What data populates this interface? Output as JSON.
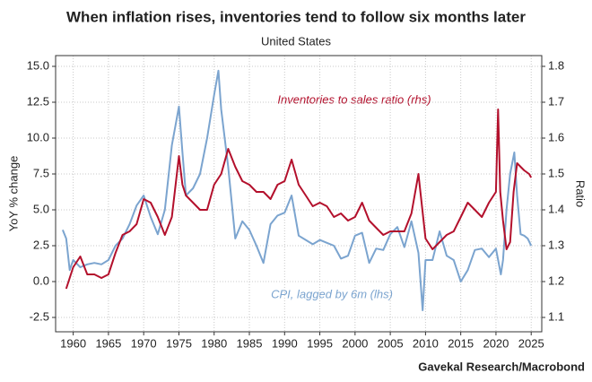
{
  "chart_data": {
    "type": "line",
    "title": "When inflation rises, inventories tend to follow six months later",
    "subtitle": "United States",
    "y_label": "YoY % change",
    "y2_label": "Ratio",
    "source": "Gavekal Research/Macrobond",
    "annotations": [
      "Inventories to sales ratio (rhs)",
      "CPI, lagged by 6m (lhs)"
    ],
    "xlim": [
      1957.5,
      2026.5
    ],
    "xticks": [
      1960,
      1965,
      1970,
      1975,
      1980,
      1985,
      1990,
      1995,
      2000,
      2005,
      2010,
      2015,
      2020,
      2025
    ],
    "ylim": [
      -3.5,
      15.75
    ],
    "yticks": [
      -2.5,
      {
        "value": 0,
        "label": "0.0"
      },
      2.5,
      {
        "value": 5,
        "label": "5.0"
      },
      7.5,
      {
        "value": 10,
        "label": "10.0"
      },
      12.5,
      {
        "value": 15,
        "label": "15.0"
      }
    ],
    "y2lim": [
      1.06,
      1.83
    ],
    "y2ticks": [
      1.1,
      1.2,
      1.3,
      1.4,
      1.5,
      1.6,
      1.7,
      1.8
    ],
    "grid": true,
    "series": [
      {
        "name": "CPI, lagged by 6m (lhs)",
        "color": "#7ba4cf",
        "axis": "y",
        "x": [
          1958.5,
          1959,
          1959.5,
          1960,
          1961,
          1962,
          1963,
          1964,
          1965,
          1966,
          1967,
          1968,
          1969,
          1970,
          1971,
          1972,
          1973,
          1974,
          1975,
          1975.5,
          1976,
          1977,
          1978,
          1979,
          1980,
          1980.6,
          1981,
          1982,
          1983,
          1984,
          1985,
          1986,
          1987,
          1988,
          1989,
          1990,
          1991,
          1992,
          1993,
          1994,
          1995,
          1996,
          1997,
          1998,
          1999,
          2000,
          2001,
          2002,
          2003,
          2004,
          2005,
          2006,
          2007,
          2008,
          2009,
          2009.6,
          2010,
          2011,
          2012,
          2013,
          2014,
          2015,
          2016,
          2017,
          2018,
          2019,
          2020,
          2020.7,
          2021,
          2021.5,
          2022,
          2022.6,
          2023,
          2023.5,
          2024,
          2024.5,
          2025
        ],
        "values": [
          3.6,
          3.0,
          0.8,
          1.5,
          1.0,
          1.2,
          1.3,
          1.2,
          1.5,
          2.5,
          3.0,
          4.0,
          5.3,
          6.0,
          4.5,
          3.3,
          5.0,
          9.5,
          12.2,
          9.0,
          6.0,
          6.5,
          7.5,
          10.0,
          13.0,
          14.7,
          12.0,
          8.0,
          3.0,
          4.2,
          3.6,
          2.5,
          1.3,
          4.0,
          4.6,
          4.8,
          6.0,
          3.2,
          2.9,
          2.6,
          2.9,
          2.7,
          2.5,
          1.6,
          1.8,
          3.2,
          3.4,
          1.3,
          2.3,
          2.2,
          3.3,
          3.8,
          2.4,
          4.2,
          2.0,
          -2.0,
          1.5,
          1.5,
          3.5,
          1.8,
          1.5,
          0.0,
          0.8,
          2.2,
          2.3,
          1.7,
          2.3,
          0.5,
          1.5,
          5.0,
          7.5,
          9.0,
          6.0,
          3.3,
          3.2,
          3.0,
          2.5
        ]
      },
      {
        "name": "Inventories to sales ratio (rhs)",
        "color": "#b3102c",
        "axis": "y2",
        "x": [
          1959,
          1960,
          1961,
          1962,
          1963,
          1964,
          1965,
          1966,
          1967,
          1968,
          1969,
          1970,
          1971,
          1972,
          1973,
          1974,
          1975,
          1975.5,
          1976,
          1977,
          1978,
          1979,
          1980,
          1981,
          1982,
          1983,
          1984,
          1985,
          1986,
          1987,
          1988,
          1989,
          1990,
          1991,
          1992,
          1993,
          1994,
          1995,
          1996,
          1997,
          1998,
          1999,
          2000,
          2001,
          2002,
          2003,
          2004,
          2005,
          2006,
          2007,
          2008,
          2009,
          2010,
          2011,
          2012,
          2013,
          2014,
          2015,
          2016,
          2017,
          2018,
          2019,
          2020,
          2020.3,
          2020.6,
          2021,
          2021.5,
          2022,
          2022.5,
          2023,
          2023.5,
          2024,
          2024.7,
          2025
        ],
        "values": [
          1.18,
          1.24,
          1.27,
          1.22,
          1.22,
          1.21,
          1.22,
          1.28,
          1.33,
          1.34,
          1.36,
          1.43,
          1.42,
          1.38,
          1.33,
          1.38,
          1.55,
          1.47,
          1.44,
          1.42,
          1.4,
          1.4,
          1.47,
          1.5,
          1.57,
          1.52,
          1.48,
          1.47,
          1.45,
          1.45,
          1.43,
          1.47,
          1.48,
          1.54,
          1.47,
          1.44,
          1.41,
          1.42,
          1.41,
          1.38,
          1.39,
          1.37,
          1.38,
          1.42,
          1.37,
          1.35,
          1.33,
          1.34,
          1.34,
          1.34,
          1.39,
          1.5,
          1.32,
          1.29,
          1.31,
          1.33,
          1.34,
          1.38,
          1.42,
          1.4,
          1.38,
          1.42,
          1.45,
          1.68,
          1.45,
          1.37,
          1.29,
          1.31,
          1.45,
          1.53,
          1.52,
          1.51,
          1.5,
          1.49
        ]
      }
    ]
  }
}
